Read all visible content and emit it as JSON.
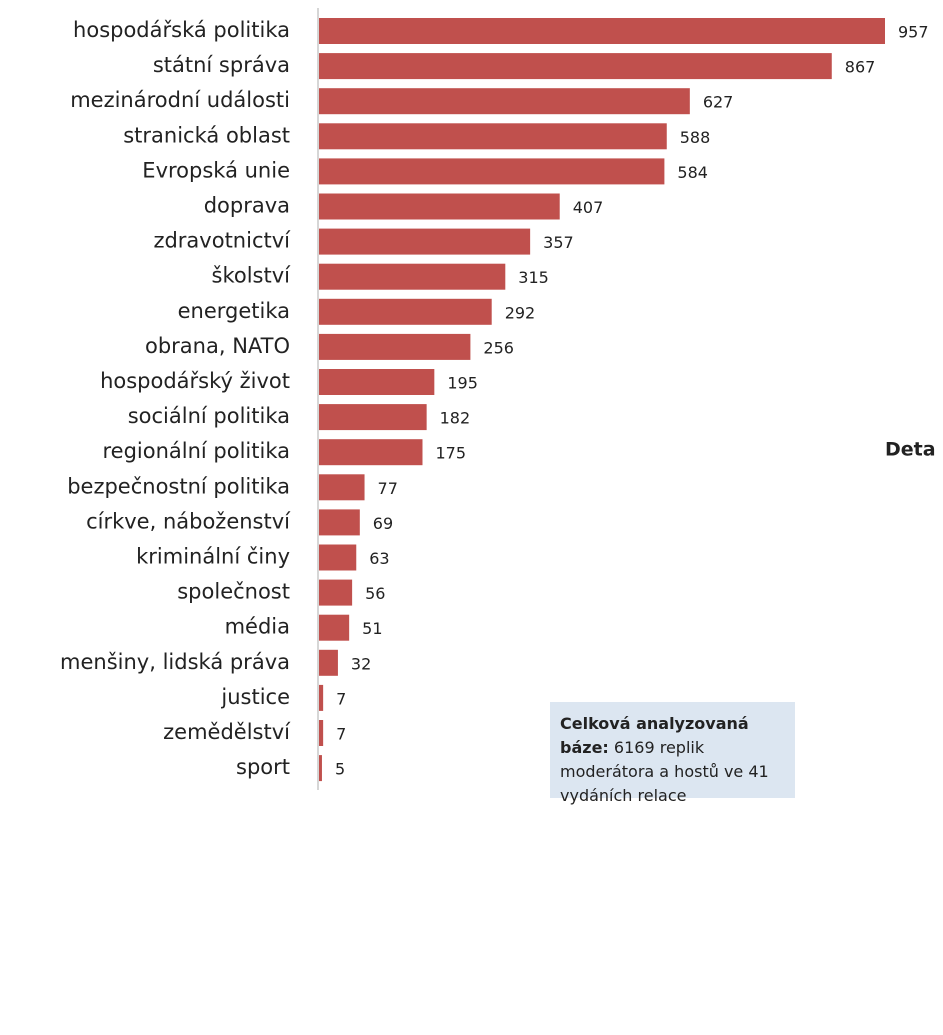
{
  "chart_data": {
    "type": "bar",
    "orientation": "horizontal",
    "categories": [
      "hospodářská politika",
      "státní správa",
      "mezinárodní události",
      "stranická oblast",
      "Evropská unie",
      "doprava",
      "zdravotnictví",
      "školství",
      "energetika",
      "obrana, NATO",
      "hospodářský život",
      "sociální politika",
      "regionální politika",
      "bezpečnostní politika",
      "církve, náboženství",
      "kriminální činy",
      "společnost",
      "média",
      "menšiny, lidská práva",
      "justice",
      "zemědělství",
      "sport"
    ],
    "values": [
      957,
      867,
      627,
      588,
      584,
      407,
      357,
      315,
      292,
      256,
      195,
      182,
      175,
      77,
      69,
      63,
      56,
      51,
      32,
      7,
      7,
      5
    ],
    "color": "#c0504d",
    "annotation": {
      "bold": "Celková analyzovaná báze:",
      "text": "6169 replik moderátora a hostů ve 41 vydáních relace"
    },
    "side_text": "Deta"
  }
}
